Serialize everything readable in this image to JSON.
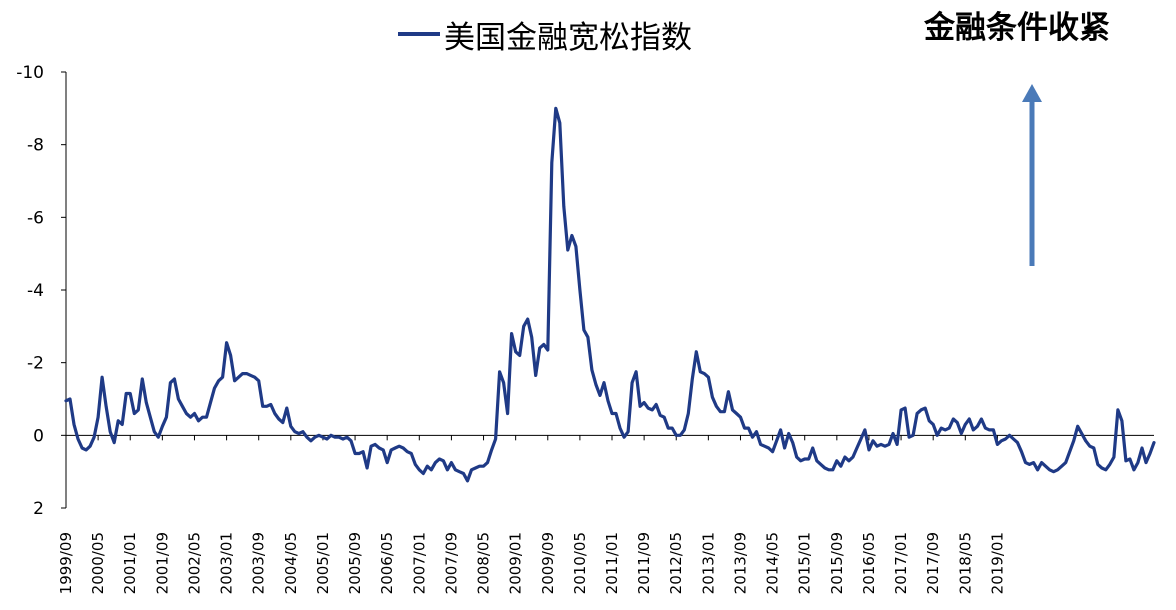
{
  "chart_data": {
    "type": "line",
    "series": [
      {
        "name": "美国金融宽松指数",
        "color": "#1f3a86",
        "values": [
          -0.95,
          -1.0,
          -0.3,
          0.1,
          0.35,
          0.4,
          0.3,
          0.05,
          -0.5,
          -1.6,
          -0.8,
          -0.1,
          0.2,
          -0.4,
          -0.3,
          -1.15,
          -1.15,
          -0.6,
          -0.7,
          -1.55,
          -0.9,
          -0.5,
          -0.1,
          0.05,
          -0.25,
          -0.5,
          -1.45,
          -1.55,
          -1.0,
          -0.8,
          -0.6,
          -0.5,
          -0.6,
          -0.4,
          -0.5,
          -0.5,
          -0.9,
          -1.3,
          -1.5,
          -1.6,
          -2.55,
          -2.2,
          -1.5,
          -1.6,
          -1.7,
          -1.7,
          -1.65,
          -1.6,
          -1.5,
          -0.8,
          -0.8,
          -0.85,
          -0.6,
          -0.45,
          -0.35,
          -0.75,
          -0.25,
          -0.1,
          -0.05,
          -0.1,
          0.05,
          0.15,
          0.05,
          0.0,
          0.05,
          0.1,
          0.0,
          0.05,
          0.05,
          0.1,
          0.05,
          0.15,
          0.5,
          0.5,
          0.45,
          0.9,
          0.3,
          0.25,
          0.35,
          0.4,
          0.75,
          0.4,
          0.35,
          0.3,
          0.35,
          0.45,
          0.5,
          0.8,
          0.95,
          1.05,
          0.85,
          0.95,
          0.75,
          0.65,
          0.7,
          0.95,
          0.75,
          0.95,
          1.0,
          1.05,
          1.25,
          0.95,
          0.9,
          0.85,
          0.85,
          0.75,
          0.4,
          0.1,
          -1.75,
          -1.45,
          -0.6,
          -2.8,
          -2.3,
          -2.2,
          -3.0,
          -3.2,
          -2.7,
          -1.65,
          -2.4,
          -2.5,
          -2.35,
          -7.5,
          -9.0,
          -8.6,
          -6.3,
          -5.1,
          -5.5,
          -5.2,
          -4.0,
          -2.9,
          -2.7,
          -1.8,
          -1.4,
          -1.1,
          -1.45,
          -0.95,
          -0.6,
          -0.6,
          -0.2,
          0.05,
          -0.1,
          -1.45,
          -1.75,
          -0.8,
          -0.9,
          -0.75,
          -0.7,
          -0.85,
          -0.55,
          -0.5,
          -0.2,
          -0.2,
          0.0,
          0.0,
          -0.15,
          -0.6,
          -1.55,
          -2.3,
          -1.75,
          -1.7,
          -1.6,
          -1.05,
          -0.8,
          -0.65,
          -0.65,
          -1.2,
          -0.7,
          -0.6,
          -0.5,
          -0.2,
          -0.2,
          0.05,
          -0.1,
          0.25,
          0.3,
          0.35,
          0.45,
          0.15,
          -0.15,
          0.35,
          -0.05,
          0.2,
          0.6,
          0.7,
          0.65,
          0.65,
          0.35,
          0.7,
          0.8,
          0.9,
          0.95,
          0.95,
          0.7,
          0.85,
          0.6,
          0.7,
          0.6,
          0.35,
          0.1,
          -0.15,
          0.4,
          0.15,
          0.3,
          0.25,
          0.3,
          0.25,
          -0.05,
          0.25,
          -0.7,
          -0.75,
          0.05,
          0.0,
          -0.6,
          -0.7,
          -0.75,
          -0.4,
          -0.3,
          0.0,
          -0.2,
          -0.15,
          -0.2,
          -0.45,
          -0.35,
          -0.05,
          -0.3,
          -0.45,
          -0.15,
          -0.25,
          -0.45,
          -0.2,
          -0.15,
          -0.15,
          0.25,
          0.15,
          0.1,
          0.0,
          0.1,
          0.2,
          0.45,
          0.75,
          0.8,
          0.75,
          0.95,
          0.75,
          0.85,
          0.95,
          1.0,
          0.95,
          0.85,
          0.75,
          0.45,
          0.15,
          -0.25,
          -0.05,
          0.15,
          0.3,
          0.35,
          0.8,
          0.9,
          0.95,
          0.8,
          0.6,
          -0.7,
          -0.4,
          0.7,
          0.65,
          0.95,
          0.75,
          0.35,
          0.75,
          0.5,
          0.2
        ]
      }
    ],
    "x_tick_labels": [
      "1999/09",
      "2000/05",
      "2001/01",
      "2001/09",
      "2002/05",
      "2003/01",
      "2003/09",
      "2004/05",
      "2005/01",
      "2005/09",
      "2006/05",
      "2007/01",
      "2007/09",
      "2008/05",
      "2009/01",
      "2009/09",
      "2010/05",
      "2011/01",
      "2011/09",
      "2012/05",
      "2013/01",
      "2013/09",
      "2014/05",
      "2015/01",
      "2015/09",
      "2016/05",
      "2017/01",
      "2017/09",
      "2018/05",
      "2019/01"
    ],
    "y_ticks": [
      -10,
      -8,
      -6,
      -4,
      -2,
      0,
      2
    ],
    "y_tick_labels": [
      "-10",
      "-8",
      "-6",
      "-4",
      "-2",
      "0",
      "2"
    ],
    "ylim": [
      -10,
      2
    ],
    "y_inverted": true,
    "grid": false,
    "legend_position": "top-center",
    "annotation": {
      "text": "金融条件收紧",
      "arrow_direction": "up",
      "arrow_color": "#4a7ab8"
    }
  }
}
